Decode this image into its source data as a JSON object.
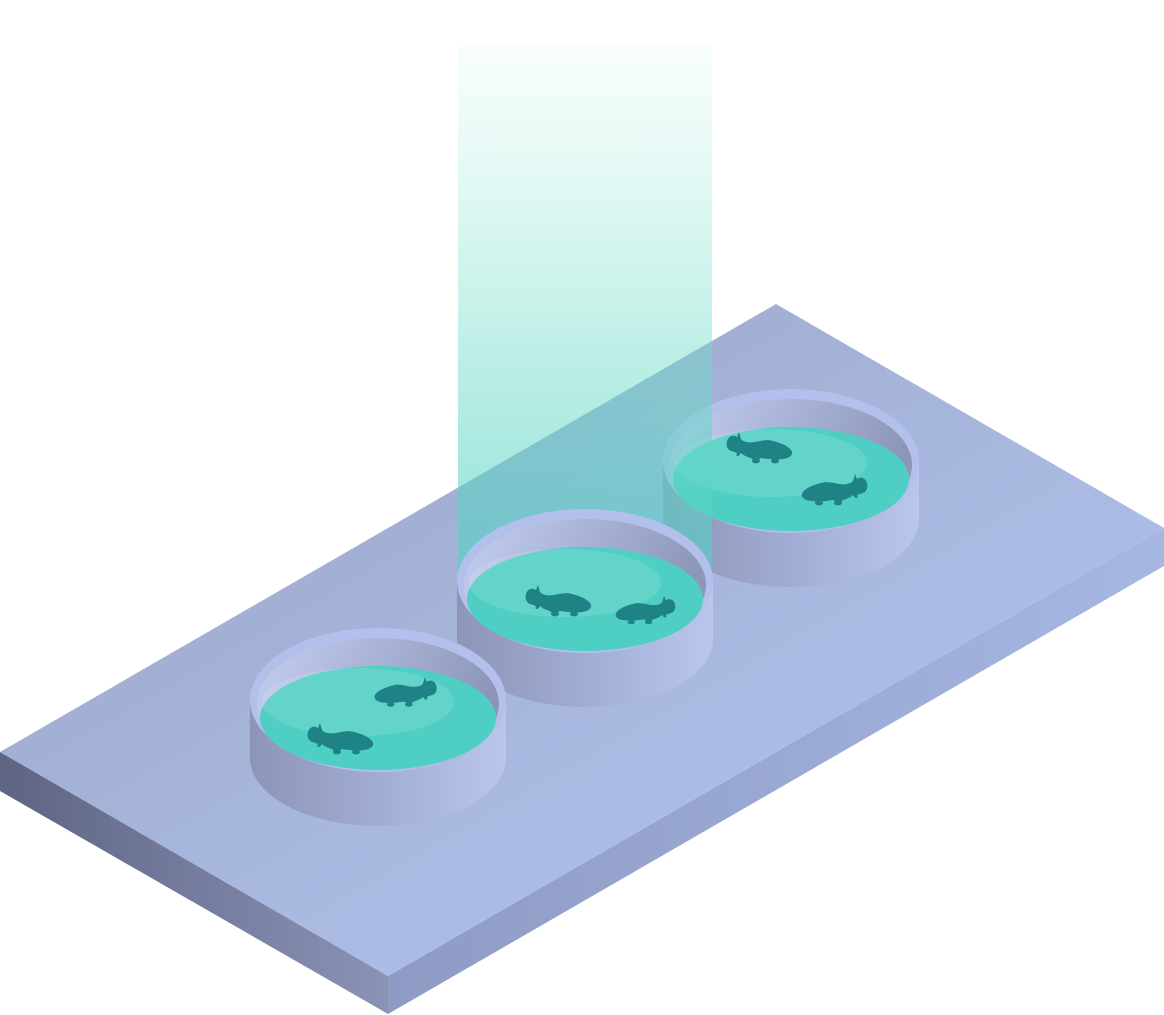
{
  "scene": {
    "colors": {
      "platform_top_start": "#9aa3c4",
      "platform_top_end": "#b4c9f5",
      "platform_left_side": "#6e7595",
      "platform_right_side": "#98a6cf",
      "dish_wall": "#a9b3da",
      "dish_rim": "#b3c0ec",
      "medium": "#4fcfc4",
      "organism": "#1f8386",
      "beam": "#8fe8d6"
    },
    "dishes": [
      {
        "id": "left",
        "organisms": 2
      },
      {
        "id": "center",
        "organisms": 2,
        "illuminated": true
      },
      {
        "id": "right",
        "organisms": 2
      }
    ]
  }
}
